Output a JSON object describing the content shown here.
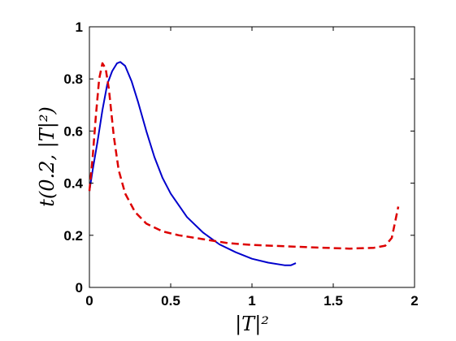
{
  "chart_data": {
    "type": "line",
    "xlabel": "|T|²",
    "ylabel": "t(0.2, |T|²)",
    "xlim": [
      0,
      2
    ],
    "ylim": [
      0,
      1
    ],
    "xticks": [
      0,
      0.5,
      1,
      1.5,
      2
    ],
    "xtick_labels": [
      "0",
      "0.5",
      "1",
      "1.5",
      "2"
    ],
    "yticks": [
      0,
      0.2,
      0.4,
      0.6,
      0.8,
      1
    ],
    "ytick_labels": [
      "0",
      "0.2",
      "0.4",
      "0.6",
      "0.8",
      "1"
    ],
    "grid": false,
    "legend": "none",
    "series": [
      {
        "color": "#0000cc",
        "style": "solid",
        "points": [
          [
            0,
            0.37
          ],
          [
            0.02,
            0.45
          ],
          [
            0.05,
            0.56
          ],
          [
            0.08,
            0.68
          ],
          [
            0.11,
            0.78
          ],
          [
            0.14,
            0.83
          ],
          [
            0.17,
            0.86
          ],
          [
            0.19,
            0.865
          ],
          [
            0.22,
            0.85
          ],
          [
            0.26,
            0.79
          ],
          [
            0.3,
            0.71
          ],
          [
            0.35,
            0.6
          ],
          [
            0.4,
            0.5
          ],
          [
            0.45,
            0.42
          ],
          [
            0.5,
            0.36
          ],
          [
            0.6,
            0.27
          ],
          [
            0.7,
            0.21
          ],
          [
            0.8,
            0.165
          ],
          [
            0.9,
            0.135
          ],
          [
            1.0,
            0.11
          ],
          [
            1.1,
            0.095
          ],
          [
            1.2,
            0.085
          ],
          [
            1.24,
            0.085
          ],
          [
            1.27,
            0.093
          ]
        ]
      },
      {
        "color": "#dd0000",
        "style": "dashed",
        "points": [
          [
            0,
            0.37
          ],
          [
            0.02,
            0.5
          ],
          [
            0.04,
            0.66
          ],
          [
            0.06,
            0.8
          ],
          [
            0.08,
            0.86
          ],
          [
            0.1,
            0.84
          ],
          [
            0.12,
            0.76
          ],
          [
            0.15,
            0.58
          ],
          [
            0.18,
            0.45
          ],
          [
            0.22,
            0.36
          ],
          [
            0.28,
            0.29
          ],
          [
            0.35,
            0.245
          ],
          [
            0.45,
            0.215
          ],
          [
            0.55,
            0.2
          ],
          [
            0.7,
            0.185
          ],
          [
            0.85,
            0.17
          ],
          [
            1.0,
            0.163
          ],
          [
            1.2,
            0.158
          ],
          [
            1.4,
            0.153
          ],
          [
            1.6,
            0.149
          ],
          [
            1.75,
            0.152
          ],
          [
            1.82,
            0.16
          ],
          [
            1.86,
            0.19
          ],
          [
            1.88,
            0.25
          ],
          [
            1.9,
            0.31
          ]
        ]
      }
    ]
  }
}
